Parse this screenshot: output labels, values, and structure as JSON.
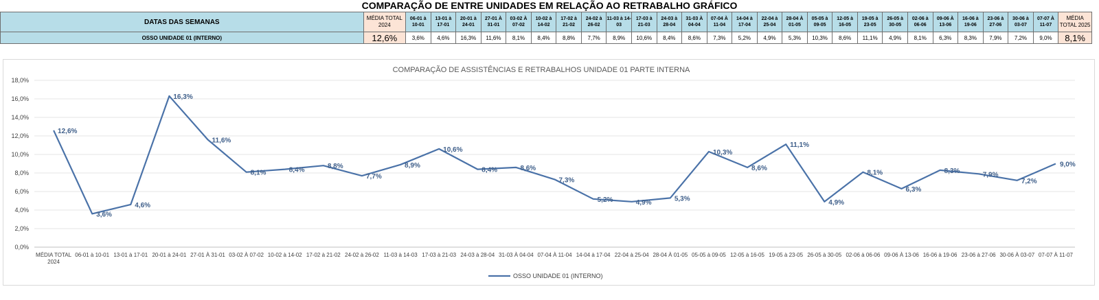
{
  "sheet": {
    "title": "COMPARAÇÃO DE ENTRE UNIDADES EM RELAÇÃO AO RETRABALHO GRÁFICO",
    "row_header_label": "DATAS DAS SEMANAS",
    "avg_2024_label": "MÉDIA TOTAL 2024",
    "avg_2025_label": "MÉDIA TOTAL 2025",
    "week_headers": [
      "06-01 à 10-01",
      "13-01 à 17-01",
      "20-01 à 24-01",
      "27-01 À 31-01",
      "03-02 À 07-02",
      "10-02 à 14-02",
      "17-02 à 21-02",
      "24-02 à 26-02",
      "11-03 à 14-03",
      "17-03 à 21-03",
      "24-03 à 28-04",
      "31-03 À 04-04",
      "07-04 À 11-04",
      "14-04 à 17-04",
      "22-04 à 25-04",
      "28-04 À 01-05",
      "05-05 à 09-05",
      "12-05 à 16-05",
      "19-05 à 23-05",
      "26-05 à 30-05",
      "02-06 à 06-06",
      "09-06 À 13-06",
      "16-06 à 19-06",
      "23-06 à 27-06",
      "30-06 à 03-07",
      "07-07 À 11-07"
    ],
    "unit_row": {
      "name": "OSSO UNIDADE 01 (INTERNO)",
      "avg_2024": "12,6%",
      "weeks": [
        "3,6%",
        "4,6%",
        "16,3%",
        "11,6%",
        "8,1%",
        "8,4%",
        "8,8%",
        "7,7%",
        "8,9%",
        "10,6%",
        "8,4%",
        "8,6%",
        "7,3%",
        "5,2%",
        "4,9%",
        "5,3%",
        "10,3%",
        "8,6%",
        "11,1%",
        "4,9%",
        "8,1%",
        "6,3%",
        "8,3%",
        "7,9%",
        "7,2%",
        "9,0%"
      ],
      "avg_2025": "8,1%"
    }
  },
  "chart_data": {
    "type": "line",
    "title": "COMPARAÇÃO DE ASSISTÊNCIAS E RETRABALHOS UNIDADE 01 PARTE INTERNA",
    "xlabel": "",
    "ylabel": "",
    "ylim": [
      0,
      18
    ],
    "y_ticks": [
      "0,0%",
      "2,0%",
      "4,0%",
      "6,0%",
      "8,0%",
      "10,0%",
      "12,0%",
      "14,0%",
      "16,0%",
      "18,0%"
    ],
    "grid": true,
    "legend_position": "bottom",
    "categories": [
      "MÉDIA TOTAL 2024",
      "06-01 à 10-01",
      "13-01 à 17-01",
      "20-01 à 24-01",
      "27-01 À 31-01",
      "03-02 À 07-02",
      "10-02 à 14-02",
      "17-02 à 21-02",
      "24-02 à 26-02",
      "11-03 à 14-03",
      "17-03 à 21-03",
      "24-03 à 28-04",
      "31-03 À 04-04",
      "07-04 À 11-04",
      "14-04 à 17-04",
      "22-04 à 25-04",
      "28-04 À 01-05",
      "05-05 à 09-05",
      "12-05 à 16-05",
      "19-05 à 23-05",
      "26-05 à 30-05",
      "02-06 à 06-06",
      "09-06 À 13-06",
      "16-06 à 19-06",
      "23-06 à 27-06",
      "30-06 À 03-07",
      "07-07 À 11-07"
    ],
    "series": [
      {
        "name": "OSSO UNIDADE 01 (INTERNO)",
        "color": "#4a72a8",
        "values": [
          12.6,
          3.6,
          4.6,
          16.3,
          11.6,
          8.1,
          8.4,
          8.8,
          7.7,
          8.9,
          10.6,
          8.4,
          8.6,
          7.3,
          5.2,
          4.9,
          5.3,
          10.3,
          8.6,
          11.1,
          4.9,
          8.1,
          6.3,
          8.3,
          7.9,
          7.2,
          9.0
        ],
        "data_labels": [
          "12,6%",
          "3,6%",
          "4,6%",
          "16,3%",
          "11,6%",
          "8,1%",
          "8,4%",
          "8,8%",
          "7,7%",
          "8,9%",
          "10,6%",
          "8,4%",
          "8,6%",
          "7,3%",
          "5,2%",
          "4,9%",
          "5,3%",
          "10,3%",
          "8,6%",
          "11,1%",
          "4,9%",
          "8,1%",
          "6,3%",
          "8,3%",
          "7,9%",
          "7,2%",
          "9,0%"
        ]
      }
    ]
  },
  "colors": {
    "header_blue": "#b7dde8",
    "avg_peach": "#fce4d6",
    "series_line": "#4a72a8",
    "label_text": "#3f5f8a"
  }
}
